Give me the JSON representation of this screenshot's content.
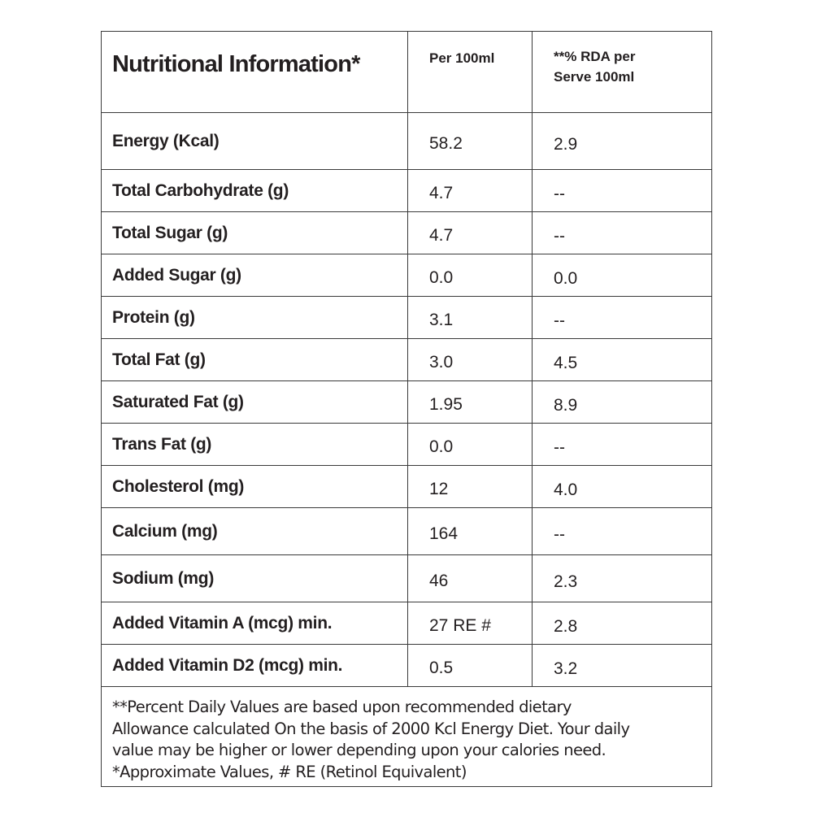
{
  "header": {
    "title": "Nutritional Information*",
    "col_per_100": "Per 100ml",
    "col_rda_line1": "**% RDA per",
    "col_rda_line2": "Serve 100ml"
  },
  "rows": [
    {
      "name": "Energy (Kcal)",
      "per100": "58.2",
      "rda": "2.9"
    },
    {
      "name": "Total Carbohydrate (g)",
      "per100": "4.7",
      "rda": "--"
    },
    {
      "name": "Total Sugar (g)",
      "per100": "4.7",
      "rda": "--"
    },
    {
      "name": "Added Sugar (g)",
      "per100": "0.0",
      "rda": "0.0"
    },
    {
      "name": "Protein (g)",
      "per100": "3.1",
      "rda": "--"
    },
    {
      "name": "Total Fat (g)",
      "per100": "3.0",
      "rda": "4.5"
    },
    {
      "name": "Saturated Fat (g)",
      "per100": "1.95",
      "rda": "8.9"
    },
    {
      "name": "Trans Fat (g)",
      "per100": "0.0",
      "rda": "--"
    },
    {
      "name": "Cholesterol (mg)",
      "per100": "12",
      "rda": "4.0"
    },
    {
      "name": "Calcium (mg)",
      "per100": "164",
      "rda": "--"
    },
    {
      "name": "Sodium (mg)",
      "per100": "46",
      "rda": "2.3"
    },
    {
      "name": "Added Vitamin A (mcg) min.",
      "per100": "27 RE #",
      "rda": "2.8"
    },
    {
      "name": "Added Vitamin D2 (mcg) min.",
      "per100": "0.5",
      "rda": "3.2"
    }
  ],
  "footnote": {
    "line1": "**Percent Daily Values are based upon recommended dietary",
    "line2": "Allowance calculated On the basis of 2000 Kcl Energy Diet. Your daily",
    "line3": "value may be higher or lower depending upon your calories need.",
    "line4": "*Approximate Values, # RE (Retinol Equivalent)"
  }
}
